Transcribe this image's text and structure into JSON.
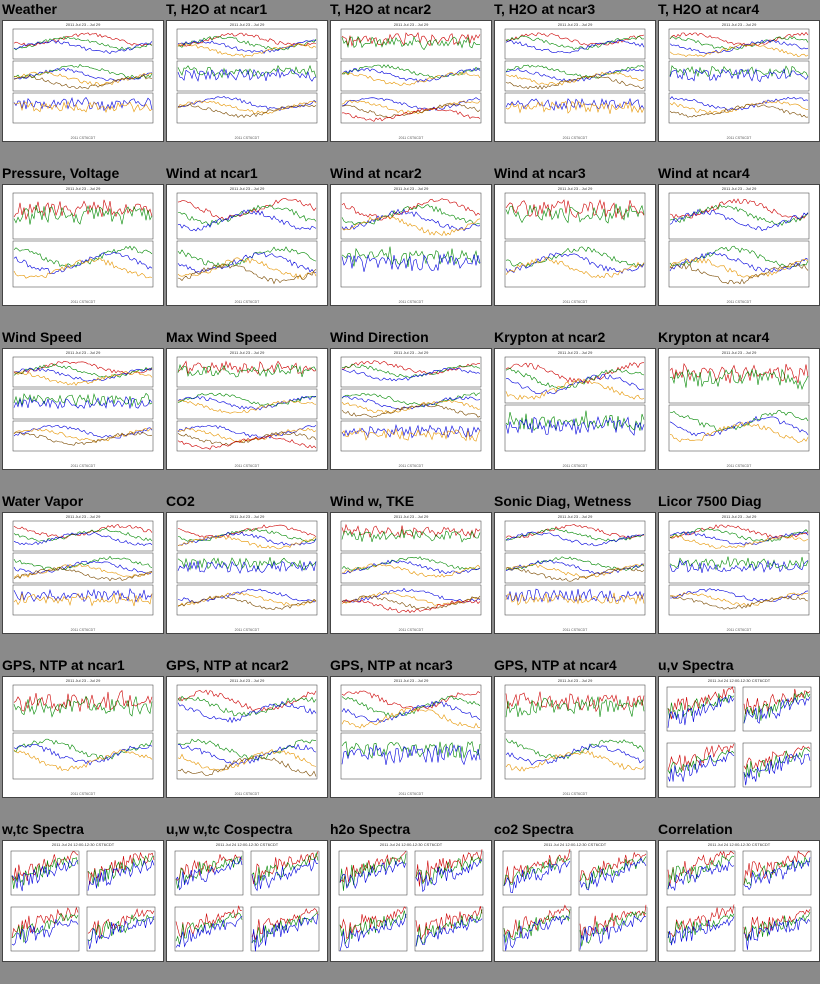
{
  "grid": {
    "rows": [
      [
        "Weather",
        "T, H2O at ncar1",
        "T, H2O at ncar2",
        "T, H2O at ncar3",
        "T, H2O at ncar4"
      ],
      [
        "Pressure, Voltage",
        "Wind at ncar1",
        "Wind at ncar2",
        "Wind at ncar3",
        "Wind at ncar4"
      ],
      [
        "Wind Speed",
        "Max Wind Speed",
        "Wind Direction",
        "Krypton at ncar2",
        "Krypton at ncar4"
      ],
      [
        "Water Vapor",
        "CO2",
        "Wind w, TKE",
        "Sonic Diag, Wetness",
        "Licor 7500 Diag"
      ],
      [
        "GPS, NTP at ncar1",
        "GPS, NTP at ncar2",
        "GPS, NTP at ncar3",
        "GPS, NTP at ncar4",
        "u,v Spectra"
      ],
      [
        "w,tc Spectra",
        "u,w w,tc Cospectra",
        "h2o Spectra",
        "co2 Spectra",
        "Correlation"
      ]
    ]
  },
  "thumb_text": {
    "date_range": "2011 Jul 23 - Jul 29",
    "spectra_range": "2011 Jul 24 12:00-12:30 CST6CDT",
    "foot": "2011 CST6CDT"
  },
  "colors": {
    "background": "#8a8a8a",
    "series": [
      "#cc0000",
      "#008800",
      "#0000dd",
      "#e69500",
      "#7a4a00"
    ]
  }
}
